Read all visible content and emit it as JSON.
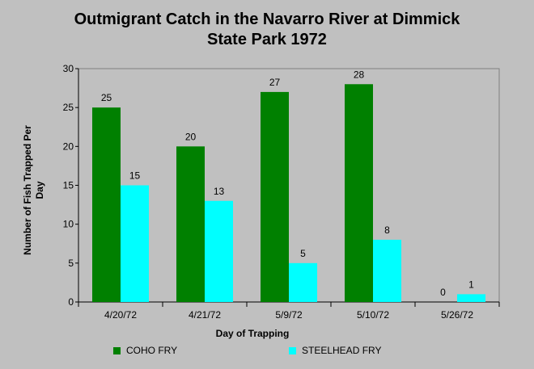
{
  "chart_data": {
    "type": "bar",
    "title_line1": "Outmigrant Catch in the Navarro River at Dimmick",
    "title_line2": "State Park 1972",
    "xlabel": "Day of Trapping",
    "ylabel_line1": "Number of Fish Trapped Per",
    "ylabel_line2": "Day",
    "categories": [
      "4/20/72",
      "4/21/72",
      "5/9/72",
      "5/10/72",
      "5/26/72"
    ],
    "series": [
      {
        "name": "COHO FRY",
        "color": "#008000",
        "values": [
          25,
          20,
          27,
          28,
          0
        ]
      },
      {
        "name": "STEELHEAD FRY",
        "color": "#00ffff",
        "values": [
          15,
          13,
          5,
          8,
          1
        ]
      }
    ],
    "ylim": [
      0,
      30
    ],
    "yticks": [
      0,
      5,
      10,
      15,
      20,
      25,
      30
    ],
    "grid": false,
    "legend_position": "bottom"
  }
}
